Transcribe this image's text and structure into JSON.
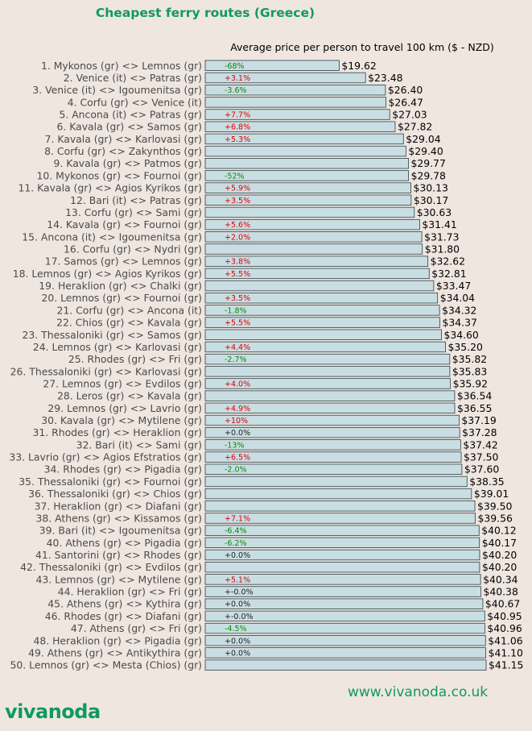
{
  "title": "Cheapest ferry routes (Greece)",
  "subtitle": "Average price per person to travel 100 km ($ - NZD)",
  "brand": "vivanoda",
  "website": "www.vivanoda.co.uk",
  "colors": {
    "accent": "#0E9A63",
    "bar_fill": "#C9DEE3",
    "bar_edge": "#2E3F45",
    "positive_change": "#E00000",
    "negative_change": "#0A8A00",
    "neutral_change": "#222222",
    "background": "#EFE6E0"
  },
  "chart_data": {
    "type": "bar",
    "orientation": "horizontal",
    "title": "Cheapest ferry routes (Greece)",
    "xlabel": "Average price per person to travel 100 km ($ - NZD)",
    "xlim": [
      0,
      41.15
    ],
    "categories": [
      "1. Mykonos (gr) <> Lemnos (gr)",
      "2. Venice (it) <> Patras (gr)",
      "3. Venice (it) <> Igoumenitsa (gr)",
      "4. Corfu (gr) <> Venice (it)",
      "5. Ancona (it) <> Patras (gr)",
      "6. Kavala (gr) <> Samos (gr)",
      "7. Kavala (gr) <> Karlovasi (gr)",
      "8. Corfu (gr) <> Zakynthos (gr)",
      "9. Kavala (gr) <> Patmos (gr)",
      "10. Mykonos (gr) <> Fournoi (gr)",
      "11. Kavala (gr) <> Agios Kyrikos (gr)",
      "12. Bari (it) <> Patras (gr)",
      "13. Corfu (gr) <> Sami (gr)",
      "14. Kavala (gr) <> Fournoi (gr)",
      "15. Ancona (it) <> Igoumenitsa (gr)",
      "16. Corfu (gr) <> Nydri (gr)",
      "17. Samos (gr) <> Lemnos (gr)",
      "18. Lemnos (gr) <> Agios Kyrikos (gr)",
      "19. Heraklion (gr) <> Chalki (gr)",
      "20. Lemnos (gr) <> Fournoi (gr)",
      "21. Corfu (gr) <> Ancona (it)",
      "22. Chios (gr) <> Kavala (gr)",
      "23. Thessaloniki (gr) <> Samos (gr)",
      "24. Lemnos (gr) <> Karlovasi (gr)",
      "25. Rhodes (gr) <> Fri (gr)",
      "26. Thessaloniki (gr) <> Karlovasi (gr)",
      "27. Lemnos (gr) <> Evdilos (gr)",
      "28. Leros (gr) <> Kavala (gr)",
      "29. Lemnos (gr) <> Lavrio (gr)",
      "30. Kavala (gr) <> Mytilene (gr)",
      "31. Rhodes (gr) <> Heraklion (gr)",
      "32. Bari (it) <> Sami (gr)",
      "33. Lavrio (gr) <> Agios Efstratios (gr)",
      "34. Rhodes (gr) <> Pigadia (gr)",
      "35. Thessaloniki (gr) <> Fournoi (gr)",
      "36. Thessaloniki (gr) <> Chios (gr)",
      "37. Heraklion (gr) <> Diafani (gr)",
      "38. Athens (gr) <> Kissamos (gr)",
      "39. Bari (it) <> Igoumenitsa (gr)",
      "40. Athens (gr) <> Pigadia (gr)",
      "41. Santorini (gr) <> Rhodes (gr)",
      "42. Thessaloniki (gr) <> Evdilos (gr)",
      "43. Lemnos (gr) <> Mytilene (gr)",
      "44. Heraklion (gr) <> Fri (gr)",
      "45. Athens (gr) <> Kythira (gr)",
      "46. Rhodes (gr) <> Diafani (gr)",
      "47. Athens (gr) <> Fri (gr)",
      "48. Heraklion (gr) <> Pigadia (gr)",
      "49. Athens (gr) <> Antikythira (gr)",
      "50. Lemnos (gr) <> Mesta (Chios) (gr)"
    ],
    "values": [
      19.62,
      23.48,
      26.4,
      26.47,
      27.03,
      27.82,
      29.04,
      29.4,
      29.77,
      29.78,
      30.13,
      30.17,
      30.63,
      31.41,
      31.73,
      31.8,
      32.62,
      32.81,
      33.47,
      34.04,
      34.32,
      34.37,
      34.6,
      35.2,
      35.82,
      35.83,
      35.92,
      36.54,
      36.55,
      37.19,
      37.28,
      37.42,
      37.5,
      37.6,
      38.35,
      39.01,
      39.5,
      39.56,
      40.12,
      40.17,
      40.2,
      40.2,
      40.34,
      40.38,
      40.67,
      40.95,
      40.96,
      41.06,
      41.1,
      41.15
    ],
    "value_labels": [
      "$19.62",
      "$23.48",
      "$26.40",
      "$26.47",
      "$27.03",
      "$27.82",
      "$29.04",
      "$29.40",
      "$29.77",
      "$29.78",
      "$30.13",
      "$30.17",
      "$30.63",
      "$31.41",
      "$31.73",
      "$31.80",
      "$32.62",
      "$32.81",
      "$33.47",
      "$34.04",
      "$34.32",
      "$34.37",
      "$34.60",
      "$35.20",
      "$35.82",
      "$35.83",
      "$35.92",
      "$36.54",
      "$36.55",
      "$37.19",
      "$37.28",
      "$37.42",
      "$37.50",
      "$37.60",
      "$38.35",
      "$39.01",
      "$39.50",
      "$39.56",
      "$40.12",
      "$40.17",
      "$40.20",
      "$40.20",
      "$40.34",
      "$40.38",
      "$40.67",
      "$40.95",
      "$40.96",
      "$41.06",
      "$41.10",
      "$41.15"
    ],
    "changes": [
      "-68%",
      "+3.1%",
      "-3.6%",
      "",
      "+7.7%",
      "+6.8%",
      "+5.3%",
      "",
      "",
      "-52%",
      "+5.9%",
      "+3.5%",
      "",
      "+5.6%",
      "+2.0%",
      "",
      "+3.8%",
      "+5.5%",
      "",
      "+3.5%",
      "-1.8%",
      "+5.5%",
      "",
      "+4.4%",
      "-2.7%",
      "",
      "+4.0%",
      "",
      "+4.9%",
      "+10%",
      "+0.0%",
      "-13%",
      "+6.5%",
      "-2.0%",
      "",
      "",
      "",
      "+7.1%",
      "-6.4%",
      "-6.2%",
      "+0.0%",
      "",
      "+5.1%",
      "+-0.0%",
      "+0.0%",
      "+-0.0%",
      "-4.5%",
      "+0.0%",
      "+0.0%",
      ""
    ],
    "grid": false,
    "legend": "none"
  }
}
